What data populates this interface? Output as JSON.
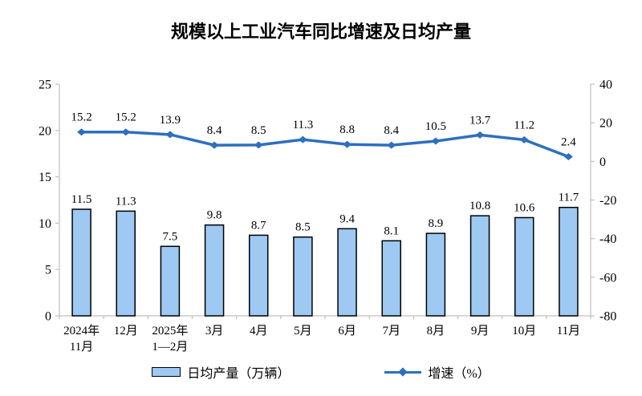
{
  "chart_data": {
    "type": "combo",
    "title": "规模以上工业汽车同比增速及日均产量",
    "categories": [
      "2024年\n11月",
      "12月",
      "2025年\n1—2月",
      "3月",
      "4月",
      "5月",
      "6月",
      "7月",
      "8月",
      "9月",
      "10月",
      "11月"
    ],
    "series": [
      {
        "name": "日均产量（万辆）",
        "type": "bar",
        "axis": "left",
        "values": [
          11.5,
          11.3,
          7.5,
          9.8,
          8.7,
          8.5,
          9.4,
          8.1,
          8.9,
          10.8,
          10.6,
          11.7
        ],
        "color": "#9DC9F2",
        "border_color": "#000000"
      },
      {
        "name": "增速（%）",
        "type": "line",
        "axis": "right",
        "values": [
          15.2,
          15.2,
          13.9,
          8.4,
          8.5,
          11.3,
          8.8,
          8.4,
          10.5,
          13.7,
          11.2,
          2.4
        ],
        "color": "#2E6FBE",
        "marker": "diamond"
      }
    ],
    "axes": {
      "left": {
        "min": 0,
        "max": 25,
        "step": 5,
        "ticks": [
          "0",
          "5",
          "10",
          "15",
          "20",
          "25"
        ]
      },
      "right": {
        "min": -80,
        "max": 40,
        "step": 20,
        "ticks": [
          "-80",
          "-60",
          "-40",
          "-20",
          "0",
          "20",
          "40"
        ]
      }
    },
    "legend": {
      "position": "bottom",
      "items": [
        "日均产量（万辆）",
        "增速（%）"
      ]
    },
    "grid": false,
    "colors": {
      "axis_line": "#BFBFBF",
      "text": "#000000",
      "background": "#FFFFFF"
    }
  }
}
